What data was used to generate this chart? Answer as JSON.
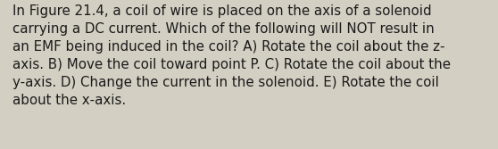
{
  "lines": [
    "In Figure 21.4, a coil of wire is placed on the axis of a solenoid",
    "carrying a DC current. Which of the following will NOT result in",
    "an EMF being induced in the coil? A) Rotate the coil about the z-",
    "axis. B) Move the coil toward point P. C) Rotate the coil about the",
    "y-axis. D) Change the current in the solenoid. E) Rotate the coil",
    "about the x-axis."
  ],
  "background_color": "#d4cfc3",
  "text_color": "#1a1a1a",
  "font_size": 10.8,
  "fig_width": 5.58,
  "fig_height": 1.67,
  "dpi": 100
}
